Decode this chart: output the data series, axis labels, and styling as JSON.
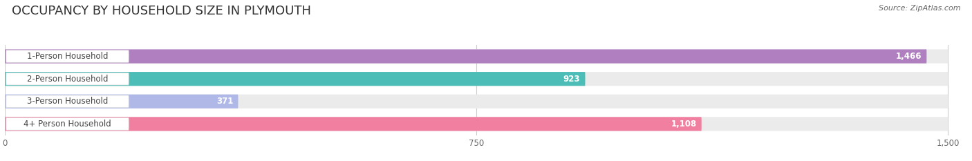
{
  "title": "OCCUPANCY BY HOUSEHOLD SIZE IN PLYMOUTH",
  "source": "Source: ZipAtlas.com",
  "categories": [
    "1-Person Household",
    "2-Person Household",
    "3-Person Household",
    "4+ Person Household"
  ],
  "values": [
    1466,
    923,
    371,
    1108
  ],
  "bar_colors": [
    "#b07fc0",
    "#4dbdb8",
    "#b0b8e8",
    "#f07fa0"
  ],
  "xlim": [
    0,
    1500
  ],
  "xticks": [
    0,
    750,
    1500
  ],
  "background_color": "#ffffff",
  "bar_bg_color": "#ebebeb",
  "bar_track_color": "#f0f0f5",
  "title_fontsize": 13,
  "label_fontsize": 8.5,
  "value_fontsize": 8.5,
  "bar_height": 0.62,
  "row_bg_colors": [
    "#f5f5f8",
    "#f5f5f8",
    "#f5f5f8",
    "#f5f5f8"
  ]
}
